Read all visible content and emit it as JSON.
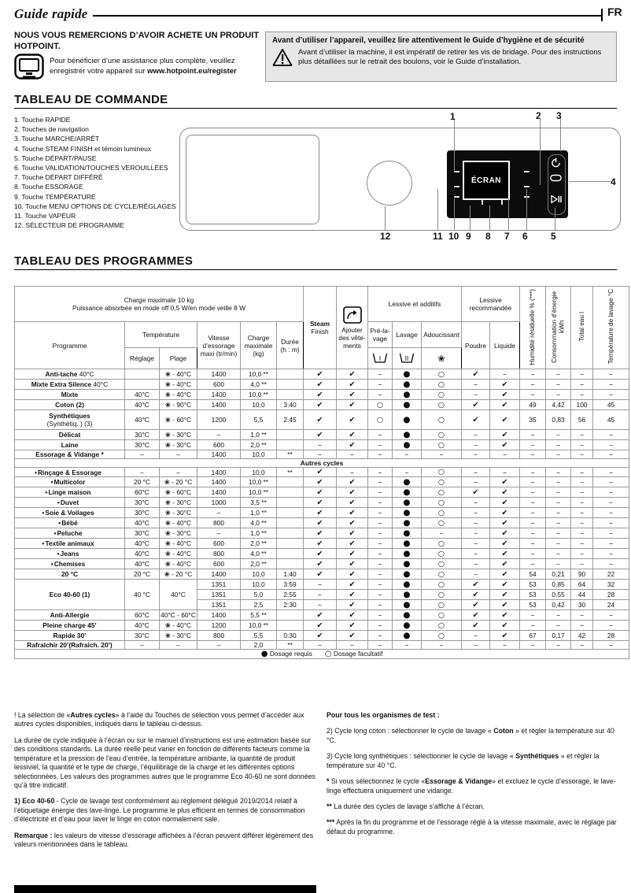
{
  "page": {
    "title": "Guide rapide",
    "lang": "FR"
  },
  "intro": {
    "thanks": "NOUS VOUS REMERCIONS D’AVOIR ACHETE UN PRODUIT HOTPOINT.",
    "register_pre": "Pour bénéficier d’une assistance plus complète, veuillez enregistrer votre appareil sur ",
    "register_url": "www.hotpoint.eu/register"
  },
  "safety": {
    "heading": "Avant d’utiliser l’appareil, veuillez lire attentivement le Guide d’hygiène et de sécurité",
    "body": "Avant d’utiliser la machine, il est impératif de retirer les vis de bridage. Pour des instructions plus détaillées sur le retrait des boulons, voir le Guide d’installation."
  },
  "control_panel": {
    "title": "TABLEAU DE COMMANDE",
    "items": [
      "1.  Touche RAPIDE",
      "2.  Touches de navigation",
      "3.  Touche MARCHE/ARRÊT",
      "4.  Touche STEAM FINISH et témoin lumineux",
      "5.  Touche DÉPART/PAUSE",
      "6.  Touche VALIDATION/TOUCHES VEROUILLÉES",
      "7.  Touche DÉPART DIFFÉRÉ",
      "8.  Touche ESSORAGE",
      "9.  Touche TEMPÉRATURE",
      "10.  Touche MENU OPTIONS DE CYCLE/RÉGLAGES",
      "11.  Touche VAPEUR",
      "12.  SÉLECTEUR DE PROGRAMME"
    ],
    "display_label": "ÉCRAN",
    "callouts": {
      "c1": "1",
      "c2": "2",
      "c3": "3",
      "c4": "4",
      "c5": "5",
      "c6": "6",
      "c7": "7",
      "c8": "8",
      "c9": "9",
      "c10": "10",
      "c11": "11",
      "c12": "12"
    }
  },
  "programs": {
    "title": "TABLEAU DES PROGRAMMES",
    "header": {
      "info_line1": "Charge maximale 10 kg",
      "info_line2": "Puissance absorbée en mode off  0,5 W/en mode veille 8 W",
      "programme": "Programme",
      "temperature": "Température",
      "reglage": "Réglage",
      "plage": "Plage",
      "vitesse": "Vitesse d’essorage maxi (tr/min)",
      "charge": "Charge maxi­male (kg)",
      "duree": "Durée (h : m)",
      "steam1": "Steam",
      "steam2": "Finish",
      "ajouter": "Ajouter des vête­ments",
      "group_additifs": "Lessive et additifs",
      "prelavage": "Pré-la­vage",
      "lavage": "Lavage",
      "adoucissant": "Adoucis­sant",
      "group_recommandee": "Lessive recommandée",
      "poudre": "Poudre",
      "liquide": "Liquide",
      "humidite": "Humidité résiduelle % (***)",
      "consommation": "Consommation d’énergie kWh",
      "total_eau": "Total eau l",
      "temp_lavage": "Température de lavage °C",
      "pre_icon_label": "I",
      "lavage_icon_label": "II",
      "adouc_icon": "❀"
    },
    "section_autres": "Autres cycles",
    "rows": [
      {
        "type": "row",
        "thick": 1,
        "bullet": "",
        "name": "Anti-tache",
        "suffix": " 40°C",
        "name2": "",
        "reglage": "",
        "plage": "❀ - 40°C",
        "vitesse": "1400",
        "charge": "10,0 **",
        "duree": "",
        "sym": [
          "✔",
          "✔",
          "–",
          "●",
          "○",
          "✔",
          "–"
        ],
        "stats": [
          "–",
          "–",
          "–",
          "–"
        ]
      },
      {
        "type": "row",
        "thick": 0,
        "bullet": "",
        "name": "Mixte Extra Silence",
        "suffix": " 40°C",
        "name2": "",
        "reglage": "",
        "plage": "❀ - 40°C",
        "vitesse": "600",
        "charge": "4,0 **",
        "duree": "",
        "sym": [
          "✔",
          "✔",
          "–",
          "●",
          "○",
          "–",
          "✔"
        ],
        "stats": [
          "–",
          "–",
          "–",
          "–"
        ]
      },
      {
        "type": "row",
        "thick": 1,
        "bullet": "",
        "name": "Mixte",
        "suffix": "",
        "name2": "",
        "reglage": "40°C",
        "plage": "❀ - 40°C",
        "vitesse": "1400",
        "charge": "10,0 **",
        "duree": "",
        "sym": [
          "✔",
          "✔",
          "–",
          "●",
          "○",
          "–",
          "✔"
        ],
        "stats": [
          "–",
          "–",
          "–",
          "–"
        ]
      },
      {
        "type": "row",
        "thick": 1,
        "bullet": "",
        "name": "Coton  (2)",
        "suffix": "",
        "name2": "",
        "reglage": "40°C",
        "plage": "❀ - 90°C",
        "vitesse": "1400",
        "charge": "10,0",
        "duree": "3:40",
        "sym": [
          "✔",
          "✔",
          "○",
          "●",
          "○",
          "✔",
          "✔"
        ],
        "stats": [
          "49",
          "4,42",
          "100",
          "45"
        ]
      },
      {
        "type": "row",
        "thick": 1,
        "bullet": "",
        "name": "Synthétiques",
        "suffix": "",
        "name2": "(Synthétiq. ) (3)",
        "reglage": "40°C",
        "plage": "❀ - 60°C",
        "vitesse": "1200",
        "charge": "5,5",
        "duree": "2:45",
        "sym": [
          "✔",
          "✔",
          "○",
          "●",
          "○",
          "✔",
          "✔"
        ],
        "stats": [
          "35",
          "0,83",
          "56",
          "45"
        ]
      },
      {
        "type": "row",
        "thick": 1,
        "bullet": "",
        "name": "Délicat",
        "suffix": "",
        "name2": "",
        "reglage": "30°C",
        "plage": "❀ - 30°C",
        "vitesse": "–",
        "charge": "1,0 **",
        "duree": "",
        "sym": [
          "✔",
          "✔",
          "–",
          "●",
          "○",
          "–",
          "✔"
        ],
        "stats": [
          "–",
          "–",
          "–",
          "–"
        ]
      },
      {
        "type": "row",
        "thick": 0,
        "bullet": "",
        "name": "Laine",
        "suffix": "",
        "name2": "",
        "reglage": "30°C",
        "plage": "❀ - 30°C",
        "vitesse": "600",
        "charge": "2,0 **",
        "duree": "",
        "sym": [
          "–",
          "✔",
          "–",
          "●",
          "○",
          "–",
          "✔"
        ],
        "stats": [
          "–",
          "–",
          "–",
          "–"
        ]
      },
      {
        "type": "row",
        "thick": 1,
        "bullet": "",
        "name": "Essorage & Vidange *",
        "suffix": "",
        "name2": "",
        "reglage": "–",
        "plage": "–",
        "vitesse": "1400",
        "charge": "10,0",
        "duree": "**",
        "sym": [
          "–",
          "–",
          "–",
          "–",
          "–",
          "–",
          "–"
        ],
        "stats": [
          "–",
          "–",
          "–",
          "–"
        ]
      },
      {
        "type": "section",
        "thick": 1
      },
      {
        "type": "row",
        "thick": 0,
        "bullet": "•",
        "name": "Rinçage & Essorage",
        "suffix": "",
        "name2": "",
        "reglage": "–",
        "plage": "–",
        "vitesse": "1400",
        "charge": "10,0",
        "duree": "**",
        "sym": [
          "✔",
          "–",
          "–",
          "–",
          "○",
          "–",
          "–"
        ],
        "stats": [
          "–",
          "–",
          "–",
          "–"
        ]
      },
      {
        "type": "row",
        "thick": 1,
        "bullet": "•",
        "name": "Multicolor",
        "suffix": "",
        "name2": "",
        "reglage": "20 °C",
        "plage": "❀ - 20 °C",
        "vitesse": "1400",
        "charge": "10,0 **",
        "duree": "",
        "sym": [
          "✔",
          "✔",
          "–",
          "●",
          "○",
          "–",
          "✔"
        ],
        "stats": [
          "–",
          "–",
          "–",
          "–"
        ]
      },
      {
        "type": "row",
        "thick": 0,
        "bullet": "•",
        "name": "Linge maison",
        "suffix": "",
        "name2": "",
        "reglage": "60°C",
        "plage": "❀ - 60°C",
        "vitesse": "1400",
        "charge": "10,0 **",
        "duree": "",
        "sym": [
          "✔",
          "✔",
          "–",
          "●",
          "○",
          "✔",
          "✔"
        ],
        "stats": [
          "–",
          "–",
          "–",
          "–"
        ]
      },
      {
        "type": "row",
        "thick": 0,
        "bullet": "•",
        "name": "Duvet",
        "suffix": "",
        "name2": "",
        "reglage": "30°C",
        "plage": "❀ - 30°C",
        "vitesse": "1000",
        "charge": "3,5 **",
        "duree": "",
        "sym": [
          "✔",
          "✔",
          "–",
          "●",
          "○",
          "–",
          "✔"
        ],
        "stats": [
          "–",
          "–",
          "–",
          "–"
        ]
      },
      {
        "type": "row",
        "thick": 0,
        "bullet": "•",
        "name": "Soie & Voilages",
        "suffix": "",
        "name2": "",
        "reglage": "30°C",
        "plage": "❀ - 30°C",
        "vitesse": "–",
        "charge": "1,0 **",
        "duree": "",
        "sym": [
          "✔",
          "✔",
          "–",
          "●",
          "○",
          "–",
          "✔"
        ],
        "stats": [
          "–",
          "–",
          "–",
          "–"
        ]
      },
      {
        "type": "row",
        "thick": 1,
        "bullet": "•",
        "name": "Bébé",
        "suffix": "",
        "name2": "",
        "reglage": "40°C",
        "plage": "❀ - 40°C",
        "vitesse": "800",
        "charge": "4,0 **",
        "duree": "",
        "sym": [
          "✔",
          "✔",
          "–",
          "●",
          "○",
          "–",
          "✔"
        ],
        "stats": [
          "–",
          "–",
          "–",
          "–"
        ]
      },
      {
        "type": "row",
        "thick": 1,
        "bullet": "•",
        "name": "Peluche",
        "suffix": "",
        "name2": "",
        "reglage": "30°C",
        "plage": "❀ - 30°C",
        "vitesse": "–",
        "charge": "1,0 **",
        "duree": "",
        "sym": [
          "✔",
          "✔",
          "–",
          "●",
          "–",
          "–",
          "✔"
        ],
        "stats": [
          "–",
          "–",
          "–",
          "–"
        ]
      },
      {
        "type": "row",
        "thick": 0,
        "bullet": "•",
        "name": "Textile animaux",
        "suffix": "",
        "name2": "",
        "reglage": "40°C",
        "plage": "❀ - 40°C",
        "vitesse": "600",
        "charge": "2,0 **",
        "duree": "",
        "sym": [
          "✔",
          "✔",
          "–",
          "●",
          "○",
          "–",
          "✔"
        ],
        "stats": [
          "–",
          "–",
          "–",
          "–"
        ]
      },
      {
        "type": "row",
        "thick": 0,
        "bullet": "•",
        "name": "Jeans",
        "suffix": "",
        "name2": "",
        "reglage": "40°C",
        "plage": "❀ - 40°C",
        "vitesse": "800",
        "charge": "4,0 **",
        "duree": "",
        "sym": [
          "✔",
          "✔",
          "–",
          "●",
          "○",
          "–",
          "✔"
        ],
        "stats": [
          "–",
          "–",
          "–",
          "–"
        ]
      },
      {
        "type": "row",
        "thick": 0,
        "bullet": "•",
        "name": "Chemises",
        "suffix": "",
        "name2": "",
        "reglage": "40°C",
        "plage": "❀ - 40°C",
        "vitesse": "600",
        "charge": "2,0 **",
        "duree": "",
        "sym": [
          "✔",
          "✔",
          "–",
          "●",
          "○",
          "–",
          "✔"
        ],
        "stats": [
          "–",
          "–",
          "–",
          "–"
        ]
      },
      {
        "type": "row",
        "thick": 1,
        "bullet": "",
        "name": "20 °C",
        "suffix": "",
        "name2": "",
        "reglage": "20 °C",
        "plage": "❀ - 20 °C",
        "vitesse": "1400",
        "charge": "10,0",
        "duree": "1:40",
        "sym": [
          "✔",
          "✔",
          "–",
          "●",
          "○",
          "–",
          "✔"
        ],
        "stats": [
          "54",
          "0,21",
          "90",
          "22"
        ]
      },
      {
        "type": "eco",
        "thick": 0,
        "name": "Eco 40-60 (1)",
        "reglage": "40 °C",
        "plage": "40°C",
        "sub": [
          {
            "vitesse": "1351",
            "charge": "10,0",
            "duree": "3:59",
            "sym": [
              "–",
              "✔",
              "–",
              "●",
              "○",
              "✔",
              "✔"
            ],
            "stats": [
              "53",
              "0,85",
              "64",
              "32"
            ]
          },
          {
            "vitesse": "1351",
            "charge": "5,0",
            "duree": "2:55",
            "sym": [
              "–",
              "✔",
              "–",
              "●",
              "○",
              "✔",
              "✔"
            ],
            "stats": [
              "53",
              "0,55",
              "44",
              "28"
            ]
          },
          {
            "vitesse": "1351",
            "charge": "2,5",
            "duree": "2:30",
            "sym": [
              "–",
              "✔",
              "–",
              "●",
              "○",
              "✔",
              "✔"
            ],
            "stats": [
              "53",
              "0,42",
              "30",
              "24"
            ]
          }
        ]
      },
      {
        "type": "row",
        "thick": 1,
        "bullet": "",
        "name": "Anti-Allergie",
        "suffix": "",
        "name2": "",
        "reglage": "60°C",
        "plage": "40°C - 60°C",
        "vitesse": "1400",
        "charge": "5,5 **",
        "duree": "",
        "sym": [
          "✔",
          "✔",
          "–",
          "●",
          "○",
          "✔",
          "✔"
        ],
        "stats": [
          "–",
          "–",
          "–",
          "–"
        ]
      },
      {
        "type": "row",
        "thick": 1,
        "bullet": "",
        "name": "Pleine charge 45’",
        "suffix": "",
        "name2": "",
        "reglage": "40°C",
        "plage": "❀ - 40°C",
        "vitesse": "1200",
        "charge": "10,0 **",
        "duree": "",
        "sym": [
          "✔",
          "✔",
          "–",
          "●",
          "○",
          "✔",
          "✔"
        ],
        "stats": [
          "–",
          "–",
          "–",
          "–"
        ]
      },
      {
        "type": "row",
        "thick": 0,
        "bullet": "",
        "name": "Rapide 30’",
        "suffix": "",
        "name2": "",
        "reglage": "30°C",
        "plage": "❀ - 30°C",
        "vitesse": "800",
        "charge": "5,5",
        "duree": "0:30",
        "sym": [
          "✔",
          "✔",
          "–",
          "●",
          "○",
          "–",
          "✔"
        ],
        "stats": [
          "67",
          "0,17",
          "42",
          "28"
        ]
      },
      {
        "type": "row",
        "thick": 0,
        "bullet": "",
        "name": "Rafraîchir 20’(Rafraîch. 20’)",
        "suffix": "",
        "name2": "",
        "reglage": "–",
        "plage": "–",
        "vitesse": "–",
        "charge": "2,0",
        "duree": "**",
        "sym": [
          "–",
          "–",
          "–",
          "–",
          "–",
          "–",
          "–"
        ],
        "stats": [
          "–",
          "–",
          "–",
          "–"
        ]
      }
    ],
    "legend": {
      "dot": "●",
      "dot_label": "Dosage requis",
      "circle": "○",
      "circle_label": "Dosage facultatif"
    }
  },
  "notes_left": [
    [
      {
        "t": "! La sélection de «"
      },
      {
        "b": 1,
        "t": "Autres cycles"
      },
      {
        "t": "» à l’aide du Touches de sélection vous permet d’accéder aux autres cycles disponibles, indiqués dans le tableau ci-dessus."
      }
    ],
    [
      {
        "t": "La durée de cycle indiquée à l’écran ou sur le manuel d’instructions est une estimation basée sur des conditions standards. La durée réelle peut varier en fonction de différents facteurs comme la température et la pression de l’eau d’entrée, la température ambiante, la quantité de produit lessiviel, la quantité et le type de charge, l’équilibrage de la charge et les différentes options sélectionnées. Les valeurs des programmes autres que le programme Eco 40-60 ne sont données qu’à titre indicatif."
      }
    ],
    [
      {
        "b": 1,
        "t": "1) Eco 40-60"
      },
      {
        "t": " - Cycle de lavage test conformément au règlement délégué 2019/2014 relatif à l’étiquetage énergie des lave-linge. Le programme le plus efficient en termes de consommation d’électricité et d’eau pour laver le linge en coton normalement sale."
      }
    ],
    [
      {
        "b": 1,
        "t": "Remarque :"
      },
      {
        "t": " les valeurs de vitesse d’essorage affichées à l’écran peuvent différer légèrement des valeurs mentionnées dans le tableau."
      }
    ]
  ],
  "notes_right": [
    [
      {
        "b": 1,
        "t": "Pour tous les organismes de test :"
      }
    ],
    [
      {
        "t": "2) Cycle long coton : sélectionner le cycle de lavage « "
      },
      {
        "b": 1,
        "t": "Coton"
      },
      {
        "t": " » et régler la température sur 40 °C."
      }
    ],
    [
      {
        "t": "3) Cycle long synthétiques : sélectionner le cycle de lavage « "
      },
      {
        "b": 1,
        "t": "Synthétiques"
      },
      {
        "t": " » et régler la température sur 40 °C."
      }
    ],
    [
      {
        "b": 1,
        "t": "*"
      },
      {
        "t": " Si vous sélectionnez le cycle «"
      },
      {
        "b": 1,
        "t": "Essorage & Vidange"
      },
      {
        "t": "» et excluez le cycle d’essorage, le lave-linge effectuera uniquement une vidange."
      }
    ],
    [
      {
        "b": 1,
        "t": "**"
      },
      {
        "t": " La durée des cycles de lavage s’affiche à l’écran."
      }
    ],
    [
      {
        "b": 1,
        "t": "***"
      },
      {
        "t": " Après la fin du programme et de l’essorage réglé à la vitesse maximale, avec le réglage par défaut du programme."
      }
    ]
  ]
}
